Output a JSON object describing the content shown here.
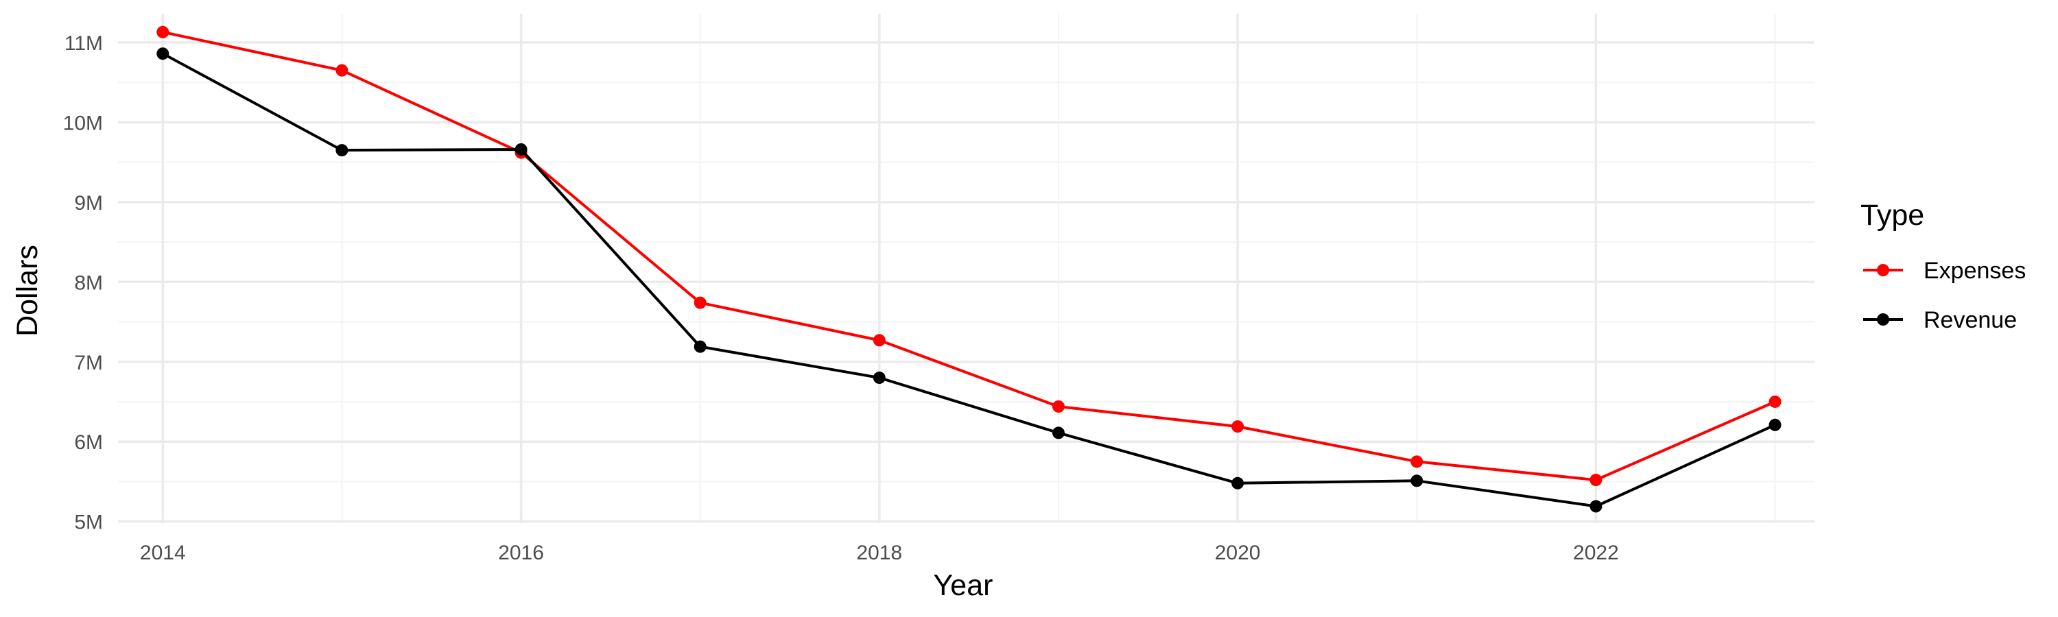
{
  "chart_data": {
    "type": "line",
    "title": "",
    "xlabel": "Year",
    "ylabel": "Dollars",
    "x": [
      2014,
      2015,
      2016,
      2017,
      2018,
      2019,
      2020,
      2021,
      2022,
      2023
    ],
    "xlim": [
      2013.75,
      2023.22
    ],
    "x_ticks": [
      2014,
      2016,
      2018,
      2020,
      2022
    ],
    "x_tick_labels": [
      "2014",
      "2016",
      "2018",
      "2020",
      "2022"
    ],
    "ylim": [
      4.98,
      11.36
    ],
    "y_ticks": [
      5,
      6,
      7,
      8,
      9,
      10,
      11
    ],
    "y_tick_labels": [
      "5M",
      "6M",
      "7M",
      "8M",
      "9M",
      "10M",
      "11M"
    ],
    "y_unit": "millions of dollars",
    "grid": true,
    "legend": {
      "title": "Type",
      "position": "right"
    },
    "series": [
      {
        "name": "Expenses",
        "color": "#ff0000",
        "values": [
          11.13,
          10.65,
          9.62,
          7.74,
          7.27,
          6.44,
          6.19,
          5.75,
          5.52,
          6.5
        ]
      },
      {
        "name": "Revenue",
        "color": "#000000",
        "values": [
          10.86,
          9.65,
          9.66,
          7.19,
          6.8,
          6.11,
          5.48,
          5.51,
          5.19,
          6.21
        ]
      }
    ]
  }
}
